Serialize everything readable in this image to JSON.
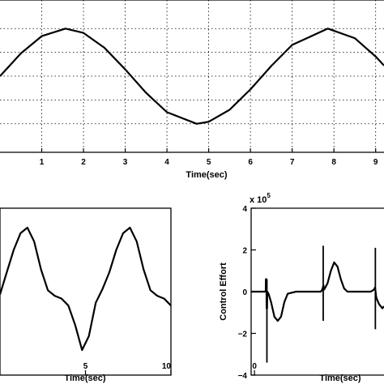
{
  "chart_data": [
    {
      "type": "line",
      "xlabel": "Time(sec)",
      "ylabel": "",
      "grid": true,
      "xlim": [
        0,
        9.2
      ],
      "ylim": [
        -1.6,
        1.6
      ],
      "x_ticks": [
        "1",
        "2",
        "3",
        "4",
        "5",
        "6",
        "7",
        "8",
        "9"
      ],
      "x_tick_values": [
        1,
        2,
        3,
        4,
        5,
        6,
        7,
        8,
        9
      ],
      "y_grid_values": [
        -1.0,
        -0.5,
        0,
        0.5,
        1.0
      ],
      "series": [
        {
          "x": [
            0,
            0.5,
            1,
            1.5708,
            2,
            2.5,
            3,
            3.5,
            4,
            4.7124,
            5,
            5.5,
            6,
            6.5,
            7,
            7.854,
            8.5,
            9,
            9.2
          ],
          "values": [
            0,
            0.479,
            0.841,
            1.0,
            0.909,
            0.598,
            0.141,
            -0.351,
            -0.757,
            -1.0,
            -0.959,
            -0.706,
            -0.279,
            0.215,
            0.657,
            1.0,
            0.798,
            0.412,
            0.223
          ]
        }
      ]
    },
    {
      "type": "line",
      "xlabel": "Time(sec)",
      "ylabel": "",
      "grid": false,
      "xlim": [
        0,
        10
      ],
      "ylim": [
        -3,
        3
      ],
      "x_ticks": [
        "5",
        "10"
      ],
      "x_tick_values": [
        5,
        10
      ],
      "series": [
        {
          "x": [
            0,
            0.4,
            0.8,
            1.2,
            1.6,
            2.0,
            2.4,
            2.8,
            3.2,
            3.6,
            4.0,
            4.4,
            4.8,
            5.2,
            5.6,
            6.0,
            6.4,
            6.8,
            7.2,
            7.6,
            8.0,
            8.4,
            8.8,
            9.2,
            9.6,
            10.0
          ],
          "values": [
            -0.1,
            0.7,
            1.5,
            2.1,
            2.3,
            1.8,
            0.8,
            0.05,
            -0.15,
            -0.25,
            -0.5,
            -1.2,
            -2.1,
            -1.6,
            -0.4,
            0.1,
            0.7,
            1.5,
            2.1,
            2.3,
            1.8,
            0.8,
            0.05,
            -0.15,
            -0.25,
            -0.5
          ]
        }
      ]
    },
    {
      "type": "line",
      "xlabel": "Time(sec)",
      "ylabel": "Control Effort",
      "multiplier_base": "x 10",
      "multiplier_exp": "5",
      "grid": false,
      "xlim": [
        -0.2,
        7.8
      ],
      "ylim": [
        -4,
        4
      ],
      "x_ticks": [
        "0"
      ],
      "x_tick_values": [
        0
      ],
      "y_ticks": [
        "4",
        "2",
        "0",
        "−2",
        "−4"
      ],
      "y_tick_values": [
        4,
        2,
        0,
        -2,
        -4
      ],
      "series": [
        {
          "x": [
            -0.2,
            0.0,
            0.5,
            0.68,
            0.69,
            0.72,
            0.73,
            0.76,
            0.77,
            0.85,
            1.0,
            1.2,
            1.4,
            1.6,
            1.8,
            2.0,
            2.5,
            3.0,
            3.5,
            4.0,
            4.08,
            4.12,
            4.13,
            4.16,
            4.17,
            4.2,
            4.4,
            4.6,
            4.8,
            5.0,
            5.2,
            5.4,
            5.6,
            6.0,
            6.5,
            7.0,
            7.2,
            7.26,
            7.27,
            7.3,
            7.31,
            7.34,
            7.5,
            7.7,
            7.8
          ],
          "values": [
            0,
            0,
            0,
            0,
            0.6,
            0.6,
            -0.8,
            -0.8,
            0,
            -0.1,
            -0.5,
            -1.2,
            -1.4,
            -1.2,
            -0.5,
            -0.1,
            0,
            0,
            0,
            0,
            0.1,
            0.2,
            0.25,
            0.3,
            0.1,
            0.1,
            0.4,
            1.0,
            1.4,
            1.2,
            0.6,
            0.15,
            0,
            0,
            0,
            0,
            0.1,
            0.2,
            0.15,
            -0.05,
            -0.15,
            -0.3,
            -0.6,
            -0.8,
            -0.7
          ]
        }
      ],
      "spikes": [
        {
          "x": 0.75,
          "min": -3.4,
          "max": 0.6
        },
        {
          "x": 4.14,
          "min": -1.4,
          "max": 2.2
        },
        {
          "x": 7.28,
          "min": -1.8,
          "max": 2.1
        }
      ]
    }
  ]
}
